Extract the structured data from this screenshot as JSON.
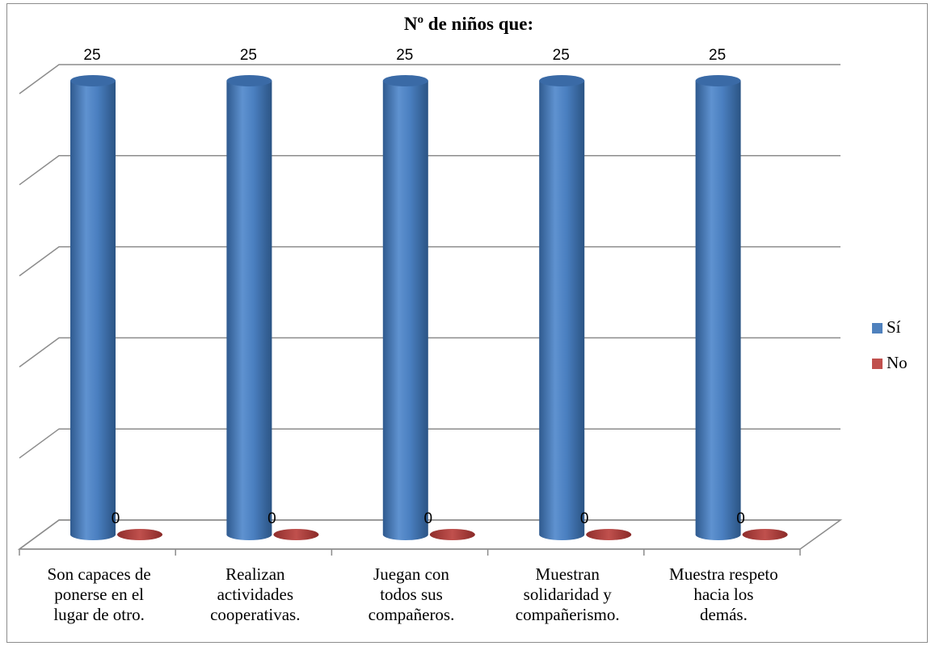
{
  "chart_data": {
    "type": "bar",
    "title": "Nº de niños que:",
    "categories": [
      [
        "Son capaces de",
        "ponerse en el",
        "lugar de otro."
      ],
      [
        "Realizan",
        "actividades",
        "cooperativas."
      ],
      [
        "Juegan con",
        "todos sus",
        "compañeros."
      ],
      [
        "Muestran",
        "solidaridad y",
        "compañerismo."
      ],
      [
        "Muestra respeto",
        "hacia los",
        "demás."
      ]
    ],
    "series": [
      {
        "name": "Sí",
        "values": [
          25,
          25,
          25,
          25,
          25
        ],
        "color": "#4f81bd"
      },
      {
        "name": "No",
        "values": [
          0,
          0,
          0,
          0,
          0
        ],
        "color": "#c0504d"
      }
    ],
    "ylim": [
      0,
      25
    ],
    "grid": true,
    "legend_position": "right",
    "style": "3d-cylinder"
  }
}
